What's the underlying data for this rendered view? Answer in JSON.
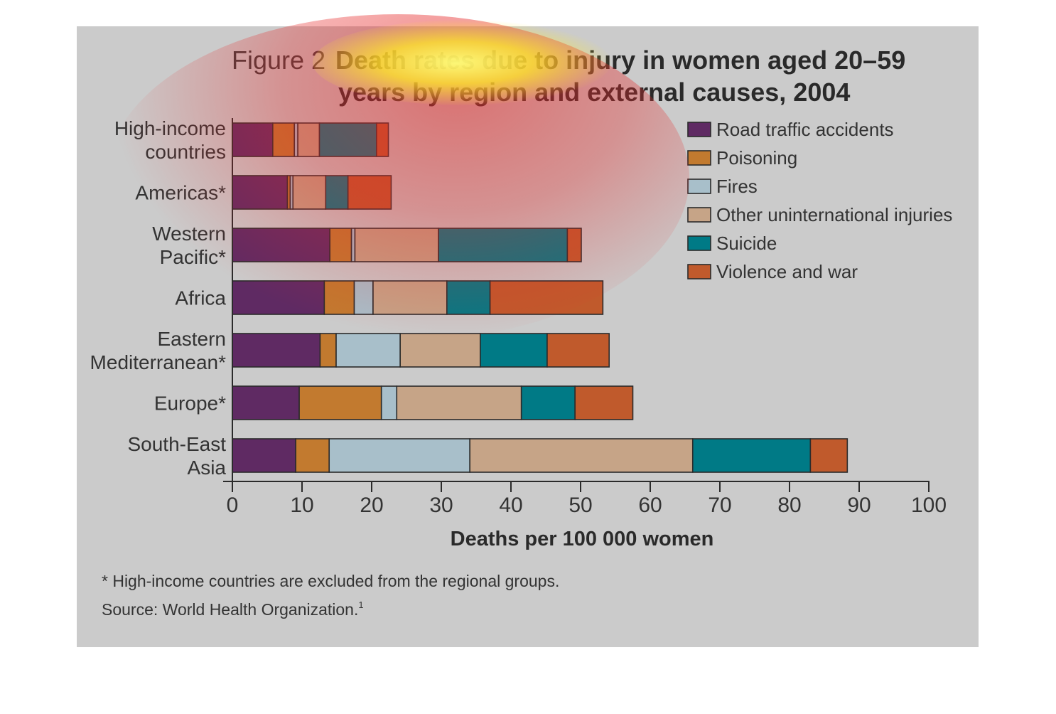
{
  "chart_data": {
    "type": "bar",
    "orientation": "horizontal",
    "stacked": true,
    "title_prefix": "Figure 2",
    "title_line1": "Death rates due to injury in women aged 20–59",
    "title_line2": "years by region and external causes, 2004",
    "xlabel": "Deaths per 100 000 women",
    "xlim": [
      0,
      100
    ],
    "xticks": [
      "0",
      "10",
      "20",
      "30",
      "40",
      "50",
      "60",
      "70",
      "80",
      "90",
      "100"
    ],
    "categories": [
      [
        "High-income",
        "countries"
      ],
      [
        "Americas*"
      ],
      [
        "Western",
        "Pacific*"
      ],
      [
        "Africa"
      ],
      [
        "Eastern",
        "Mediterranean*"
      ],
      [
        "Europe*"
      ],
      [
        "South-East",
        "Asia"
      ]
    ],
    "series": [
      {
        "name": "Road traffic accidents",
        "color": "#5f2a63",
        "values": [
          5.8,
          7.9,
          14.0,
          13.2,
          12.6,
          9.6,
          9.1
        ]
      },
      {
        "name": "Poisoning",
        "color": "#c27a2f",
        "values": [
          3.1,
          0.4,
          3.1,
          4.3,
          2.3,
          11.8,
          4.8
        ]
      },
      {
        "name": "Fires",
        "color": "#a8bfca",
        "values": [
          0.5,
          0.4,
          0.5,
          2.7,
          9.2,
          2.2,
          20.2
        ]
      },
      {
        "name": "Other uninternational injuries",
        "color": "#c6a487",
        "values": [
          3.1,
          4.7,
          12.0,
          10.6,
          11.5,
          17.9,
          32.0
        ]
      },
      {
        "name": "Suicide",
        "color": "#007a86",
        "values": [
          8.2,
          3.2,
          18.5,
          6.2,
          9.6,
          7.7,
          16.9
        ]
      },
      {
        "name": "Violence and war",
        "color": "#c05a2c",
        "values": [
          1.7,
          6.2,
          2.0,
          16.2,
          8.9,
          8.3,
          5.3
        ]
      }
    ],
    "legend_position": "top-right",
    "grid": false
  },
  "footnote": "* High-income countries are excluded from the regional groups.",
  "source": "Source: World Health Organization.",
  "source_ref": "1"
}
